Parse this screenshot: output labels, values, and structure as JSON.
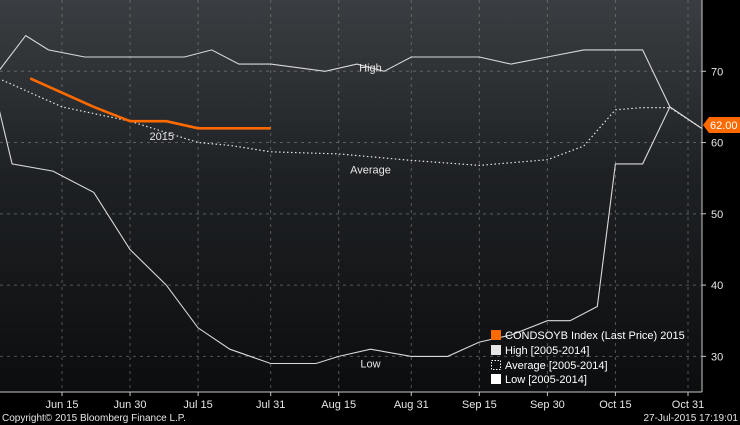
{
  "chart_data": {
    "type": "line",
    "x_axis_labels": [
      "Jun 15",
      "Jun 30",
      "Jul 15",
      "Jul 31",
      "Aug 15",
      "Aug 31",
      "Sep 15",
      "Sep 30",
      "Oct 15",
      "Oct 31"
    ],
    "ylim": [
      25,
      80
    ],
    "yticks": [
      30,
      40,
      50,
      60,
      70
    ],
    "grid": true,
    "series": [
      {
        "name": "High [2005-2014]",
        "label": "High",
        "color": "#d9d9d9",
        "style": "solid",
        "points": [
          [
            "Jun 1",
            70
          ],
          [
            "Jun 7",
            75
          ],
          [
            "Jun 12",
            73
          ],
          [
            "Jun 20",
            72
          ],
          [
            "Jun 30",
            72
          ],
          [
            "Jul 12",
            72
          ],
          [
            "Jul 18",
            73
          ],
          [
            "Jul 24",
            71
          ],
          [
            "Jul 31",
            71
          ],
          [
            "Aug 12",
            70
          ],
          [
            "Aug 19",
            71
          ],
          [
            "Aug 25",
            70
          ],
          [
            "Aug 31",
            72
          ],
          [
            "Sep 7",
            72
          ],
          [
            "Sep 15",
            72
          ],
          [
            "Sep 22",
            71
          ],
          [
            "Sep 30",
            72
          ],
          [
            "Oct 8",
            73
          ],
          [
            "Oct 15",
            73
          ],
          [
            "Oct 21",
            73
          ],
          [
            "Oct 27",
            65
          ],
          [
            "Nov 3",
            62
          ]
        ]
      },
      {
        "name": "Average [2005-2014]",
        "label": "Average",
        "color": "#e6e6e6",
        "style": "dotted",
        "points": [
          [
            "Jun 1",
            69
          ],
          [
            "Jun 15",
            65
          ],
          [
            "Jun 30",
            63
          ],
          [
            "Jul 15",
            60
          ],
          [
            "Jul 22",
            59.6
          ],
          [
            "Jul 31",
            58.7
          ],
          [
            "Aug 15",
            58.4
          ],
          [
            "Aug 31",
            57.5
          ],
          [
            "Sep 15",
            56.8
          ],
          [
            "Sep 30",
            57.6
          ],
          [
            "Oct 8",
            59.5
          ],
          [
            "Oct 15",
            64.6
          ],
          [
            "Oct 21",
            64.9
          ],
          [
            "Oct 27",
            64.9
          ],
          [
            "Nov 3",
            62
          ]
        ]
      },
      {
        "name": "Low [2005-2014]",
        "label": "Low",
        "color": "#d9d9d9",
        "style": "solid",
        "points": [
          [
            "Jun 1",
            65
          ],
          [
            "Jun 4",
            57
          ],
          [
            "Jun 13",
            56
          ],
          [
            "Jun 22",
            53
          ],
          [
            "Jun 30",
            45
          ],
          [
            "Jul 8",
            40
          ],
          [
            "Jul 15",
            34
          ],
          [
            "Jul 22",
            31
          ],
          [
            "Jul 31",
            29
          ],
          [
            "Aug 10",
            29
          ],
          [
            "Aug 15",
            30
          ],
          [
            "Aug 22",
            31
          ],
          [
            "Aug 31",
            30
          ],
          [
            "Sep 8",
            30
          ],
          [
            "Sep 15",
            32
          ],
          [
            "Sep 22",
            33
          ],
          [
            "Sep 30",
            35
          ],
          [
            "Oct 5",
            35
          ],
          [
            "Oct 11",
            37
          ],
          [
            "Oct 15",
            57
          ],
          [
            "Oct 21",
            57
          ],
          [
            "Oct 27",
            65
          ],
          [
            "Nov 3",
            62
          ]
        ]
      },
      {
        "name": "CONDSOYB Index (Last Price) 2015",
        "label": "2015",
        "color": "#ff6a00",
        "style": "solid",
        "points": [
          [
            "Jun 8",
            69
          ],
          [
            "Jun 15",
            67
          ],
          [
            "Jun 22",
            65
          ],
          [
            "Jun 30",
            63
          ],
          [
            "Jul 8",
            63
          ],
          [
            "Jul 15",
            62
          ],
          [
            "Jul 22",
            62
          ],
          [
            "Jul 31",
            62
          ]
        ]
      }
    ],
    "last_price_tag": "62.00",
    "legend": {
      "placement": "bottom-right",
      "entries": [
        {
          "label": "CONDSOYB Index (Last Price) 2015",
          "swatch": "#ff6a00"
        },
        {
          "label": "High [2005-2014]",
          "swatch": "#e6e6e6"
        },
        {
          "label": "Average [2005-2014]",
          "swatch": "dotted"
        },
        {
          "label": "Low [2005-2014]",
          "swatch": "#ffffff"
        }
      ]
    }
  },
  "footer": {
    "copyright": "Copyright© 2015 Bloomberg Finance L.P.",
    "timestamp": "27-Jul-2015 17:19:01"
  }
}
